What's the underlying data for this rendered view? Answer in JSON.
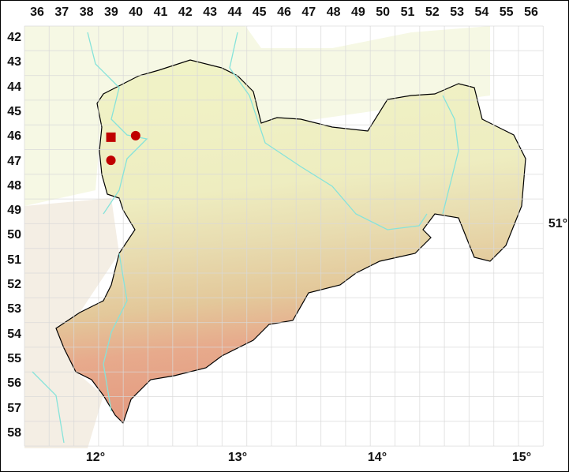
{
  "map": {
    "grid_columns": [
      "36",
      "37",
      "38",
      "39",
      "40",
      "41",
      "42",
      "43",
      "44",
      "45",
      "46",
      "47",
      "48",
      "49",
      "50",
      "51",
      "52",
      "53",
      "54",
      "55",
      "56"
    ],
    "grid_rows": [
      "42",
      "43",
      "44",
      "45",
      "46",
      "47",
      "48",
      "49",
      "50",
      "51",
      "52",
      "53",
      "54",
      "55",
      "56",
      "57",
      "58"
    ],
    "longitude_labels": [
      "12°",
      "13°",
      "14°",
      "15°"
    ],
    "latitude_labels": [
      "51°"
    ],
    "colors": {
      "border": "#000000",
      "river": "#7fe0d8",
      "marker": "#c00000",
      "lowland": "#f2f3cc",
      "hills": "#e9dba8",
      "mountains": "#e7a88a"
    },
    "records": [
      {
        "column": "39",
        "row": "46",
        "symbol": "square"
      },
      {
        "column": "40",
        "row": "46",
        "symbol": "circle"
      },
      {
        "column": "39",
        "row": "47",
        "symbol": "circle"
      }
    ]
  }
}
